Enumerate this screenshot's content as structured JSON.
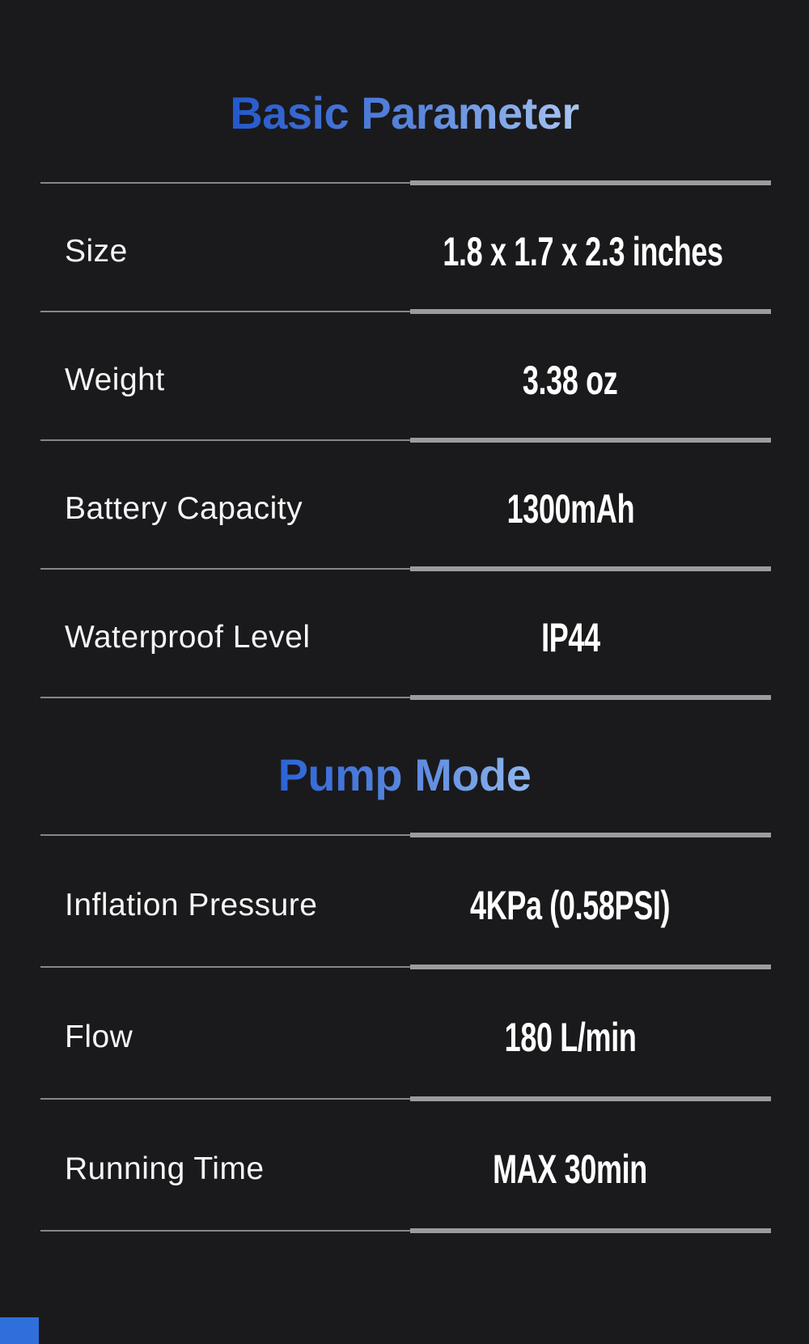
{
  "page": {
    "background_color": "#1a1a1c",
    "divider_thin_color": "#87878a",
    "divider_thick_color": "#9c9c9e",
    "label_color": "#f5f5f5",
    "value_color": "#ffffff",
    "corner_accent_color": "#2f6fdc"
  },
  "sections": [
    {
      "title": "Basic Parameter",
      "title_gradient_start": "#2457cc",
      "title_gradient_end": "#a9c6f2",
      "rows": [
        {
          "label": "Size",
          "value": "1.8 x 1.7 x 2.3 inches"
        },
        {
          "label": "Weight",
          "value": "3.38 oz"
        },
        {
          "label": "Battery Capacity",
          "value": "1300mAh"
        },
        {
          "label": "Waterproof Level",
          "value": "IP44"
        }
      ]
    },
    {
      "title": "Pump Mode",
      "title_gradient_start": "#2c63d6",
      "title_gradient_end": "#8fb7ee",
      "rows": [
        {
          "label": "Inflation Pressure",
          "value": "4KPa (0.58PSI)"
        },
        {
          "label": "Flow",
          "value": "180 L/min"
        },
        {
          "label": "Running Time",
          "value": "MAX 30min"
        }
      ]
    }
  ]
}
